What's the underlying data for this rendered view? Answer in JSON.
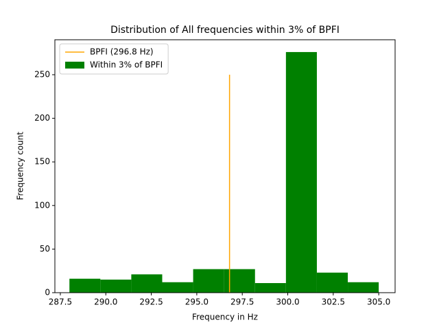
{
  "chart_data": {
    "type": "histogram",
    "title": "Distribution of All frequencies within 3% of BPFI",
    "x_label": "Frequency in Hz",
    "y_label": "Frequency count",
    "bins": [
      288.0,
      289.7,
      291.4,
      293.1,
      294.8,
      296.5,
      298.2,
      299.9,
      301.6,
      303.3,
      305.0
    ],
    "series": [
      {
        "name": "Within 3% of BPFI",
        "color": "#008000",
        "values": [
          16,
          15,
          21,
          12,
          27,
          27,
          11,
          276,
          23,
          12
        ]
      }
    ],
    "vlines": [
      {
        "name": "BPFI (296.8 Hz)",
        "color": "#ffa500",
        "x": 296.8,
        "ymin": 0,
        "ymax": 250
      }
    ],
    "xlim": [
      287.2,
      305.9
    ],
    "ylim": [
      0,
      290.1
    ],
    "xticks": [
      {
        "value": 287.5,
        "label": "287.5"
      },
      {
        "value": 290,
        "label": "290.0"
      },
      {
        "value": 292.5,
        "label": "292.5"
      },
      {
        "value": 295,
        "label": "295.0"
      },
      {
        "value": 297.5,
        "label": "297.5"
      },
      {
        "value": 300,
        "label": "300.0"
      },
      {
        "value": 302.5,
        "label": "302.5"
      },
      {
        "value": 305,
        "label": "305.0"
      }
    ],
    "yticks": [
      0,
      50,
      100,
      150,
      200,
      250
    ],
    "legend": "upper left"
  }
}
